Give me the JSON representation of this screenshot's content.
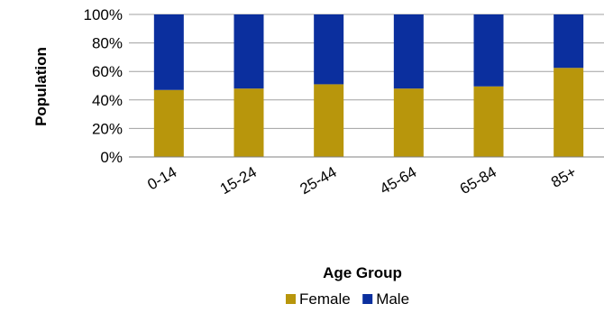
{
  "chart_data": {
    "type": "bar",
    "stacked": true,
    "percent_stacked": true,
    "categories": [
      "0-14",
      "15-24",
      "25-44",
      "45-64",
      "65-84",
      "85+"
    ],
    "series": [
      {
        "name": "Female",
        "values": [
          47,
          48,
          51,
          48,
          49.5,
          62.5
        ]
      },
      {
        "name": "Male",
        "values": [
          53,
          52,
          49,
          52,
          50.5,
          37.5
        ]
      }
    ],
    "ylabel": "Population",
    "xlabel": "Age Group",
    "ylim": [
      0,
      100
    ],
    "yticks": [
      "0%",
      "20%",
      "40%",
      "60%",
      "80%",
      "100%"
    ],
    "grid": true,
    "legend_position": "bottom",
    "colors": {
      "Female": "#b8960c",
      "Male": "#0b2f9e",
      "grid": "#a0a0a0",
      "axis": "#808080"
    }
  }
}
